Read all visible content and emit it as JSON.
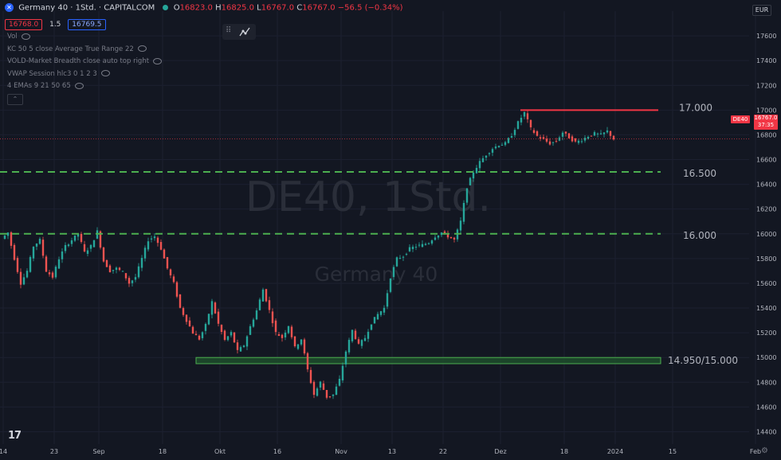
{
  "header": {
    "symbol_icon": "dax-logo-icon",
    "title": "Germany 40 · 1Std. · CAPITALCOM",
    "status": "market-open-dot-icon",
    "ohlc": [
      {
        "key": "O",
        "value": "16823.0"
      },
      {
        "key": "H",
        "value": "16825.0"
      },
      {
        "key": "L",
        "value": "16767.0"
      },
      {
        "key": "C",
        "value": "16767.0"
      }
    ],
    "change": "−56.5 (−0.34%)"
  },
  "quote": {
    "bid": "16768.0",
    "spread": "1.5",
    "ask": "16769.5"
  },
  "indicators": [
    "Vol",
    "KC 50 5 close Average True Range 22",
    "VOLD-Market Breadth close auto top right",
    "VWAP Session hlc3 0 1 2 3",
    "4 EMAs 9 21 50 65"
  ],
  "currency": "EUR",
  "watermark": {
    "symbol": "DE40, 1Std.",
    "name": "Germany 40"
  },
  "price_tag": {
    "symbol": "DE40",
    "price": "16767.0",
    "countdown": "37:35"
  },
  "colors": {
    "background": "#131722",
    "up": "#26a69a",
    "down": "#ef5350",
    "resistance": "#f23645",
    "support": "#4caf50",
    "zone_fill": "#1f4d2b",
    "zone_border": "#4caf50"
  },
  "chart_data": {
    "type": "candlestick",
    "ylim": [
      14300,
      17800
    ],
    "y_ticks": [
      14400,
      14600,
      14800,
      15000,
      15200,
      15400,
      15600,
      15800,
      16000,
      16200,
      16400,
      16600,
      16800,
      17000,
      17200,
      17400,
      17600
    ],
    "x_ticks": [
      "14",
      "23",
      "Sep",
      "18",
      "Okt",
      "16",
      "Nov",
      "13",
      "22",
      "Dez",
      "18",
      "2024",
      "15",
      "Feb"
    ],
    "x_tick_index": [
      0,
      8,
      15,
      25,
      34,
      43,
      53,
      61,
      69,
      78,
      88,
      96,
      105,
      118
    ],
    "last_index": 97,
    "series": [
      {
        "values": [
          15960,
          16010,
          15800,
          15600,
          15700,
          15900,
          15950,
          15700,
          15650,
          15800,
          15900,
          15950,
          16000,
          15850,
          15900,
          16020,
          15780,
          15700,
          15720,
          15690,
          15600,
          15650,
          15800,
          15950,
          15980,
          15880,
          15720,
          15600,
          15400,
          15300,
          15200,
          15150,
          15260,
          15450,
          15270,
          15140,
          15200,
          15050,
          15100,
          15250,
          15380,
          15550,
          15380,
          15200,
          15160,
          15260,
          15080,
          15150,
          14900,
          14700,
          14800,
          14680,
          14700,
          14820,
          15050,
          15220,
          15100,
          15160,
          15280,
          15350,
          15400,
          15650,
          15800,
          15820,
          15880,
          15900,
          15910,
          15930,
          15980,
          16010,
          15980,
          15950,
          16100,
          16380,
          16500,
          16580,
          16640,
          16690,
          16720,
          16730,
          16800,
          16900,
          16980,
          16850,
          16790,
          16760,
          16730,
          16750,
          16820,
          16780,
          16740,
          16760,
          16790,
          16810,
          16800,
          16830,
          16767
        ]
      }
    ],
    "annotations": [
      {
        "label": "17.000",
        "y": 17000,
        "kind": "resistance-line"
      },
      {
        "label": "16.500",
        "y": 16500,
        "kind": "support-dashed"
      },
      {
        "label": "16.000",
        "y": 16000,
        "kind": "support-dashed"
      },
      {
        "label": "14.950/15.000",
        "y": [
          14950,
          15000
        ],
        "kind": "demand-zone"
      }
    ],
    "grid": true,
    "legend": "top-left"
  }
}
